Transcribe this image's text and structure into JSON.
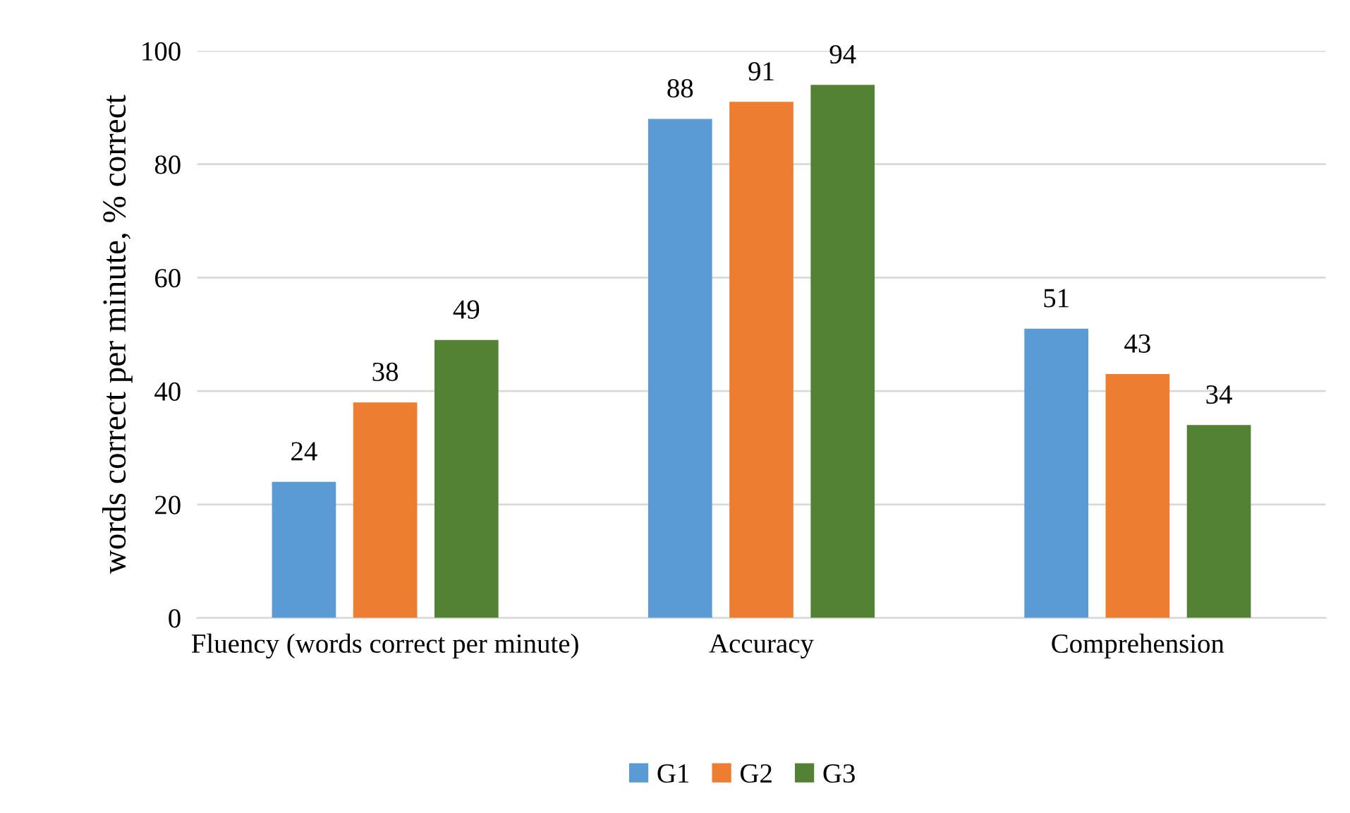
{
  "chart_data": {
    "type": "bar",
    "ylabel": "words correct per minute, % correct",
    "categories": [
      "Fluency (words correct per minute)",
      "Accuracy",
      "Comprehension"
    ],
    "series": [
      {
        "name": "G1",
        "color": "#5b9bd5",
        "values": [
          24,
          88,
          51
        ]
      },
      {
        "name": "G2",
        "color": "#ed7d31",
        "values": [
          38,
          91,
          43
        ]
      },
      {
        "name": "G3",
        "color": "#548235",
        "values": [
          49,
          94,
          34
        ]
      }
    ],
    "ylim": [
      0,
      100
    ],
    "yticks": [
      0,
      20,
      40,
      60,
      80,
      100
    ],
    "grid": "y",
    "legend": "bottom",
    "data_labels": true
  }
}
